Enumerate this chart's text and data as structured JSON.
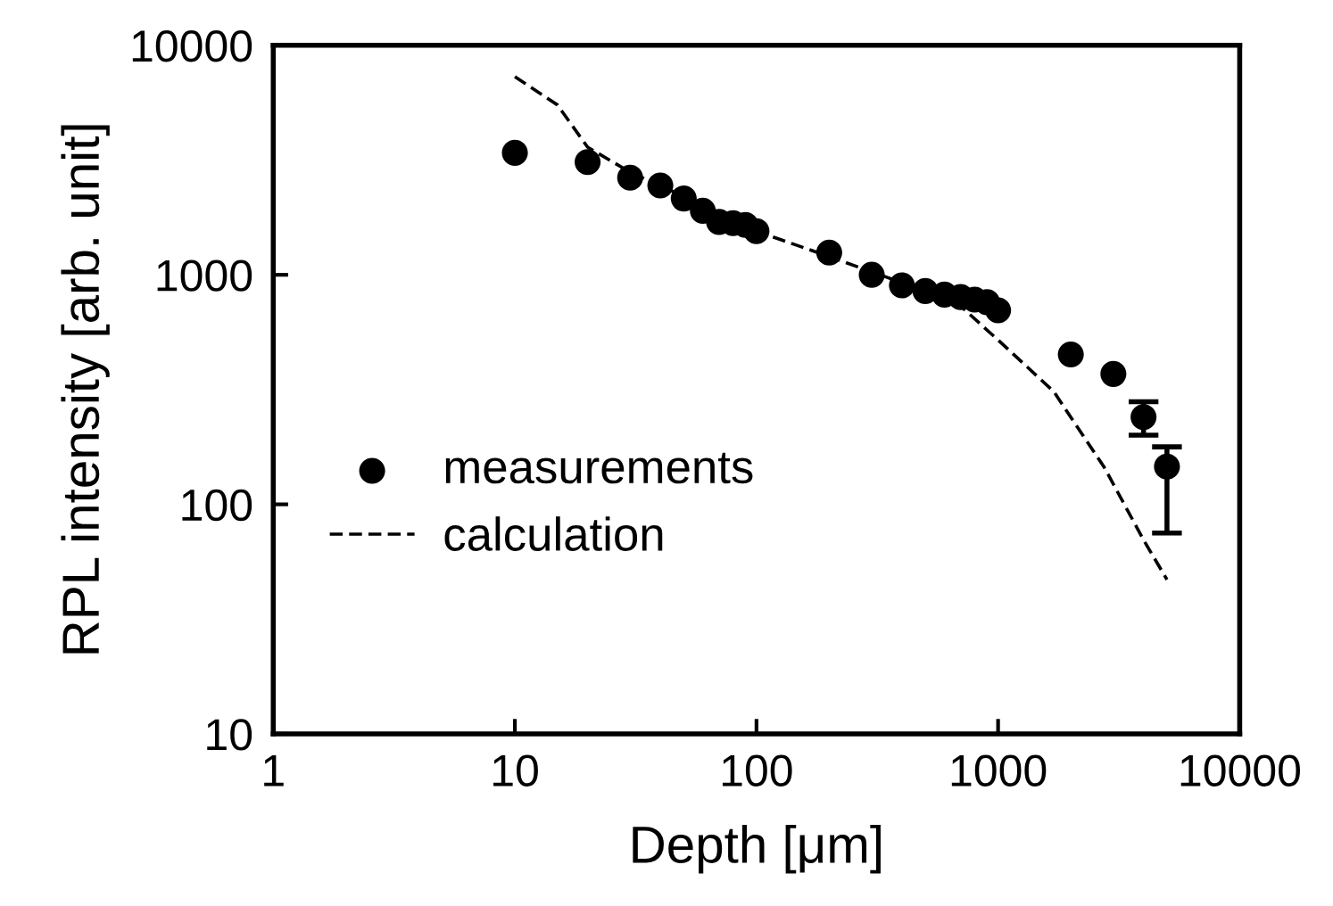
{
  "chart_data": {
    "type": "scatter",
    "xlabel": "Depth [μm]",
    "ylabel": "RPL intensity [arb. unit]",
    "log": "xy",
    "xlim": [
      1,
      10000
    ],
    "xticks": [
      1,
      10,
      100,
      1000,
      10000
    ],
    "ylim": [
      10,
      10000
    ],
    "yticks": [
      10,
      100,
      1000,
      10000
    ],
    "grid": false,
    "legend": "bottom left",
    "series": [
      {
        "name": "measurements",
        "marker": "circle",
        "color": "#000000",
        "x": [
          10,
          20,
          30,
          40,
          50,
          60,
          70,
          80,
          90,
          100,
          200,
          300,
          400,
          500,
          600,
          700,
          800,
          900,
          1000,
          2000,
          3000,
          4000,
          5000
        ],
        "values": [
          3400,
          3100,
          2650,
          2450,
          2150,
          1900,
          1700,
          1680,
          1650,
          1550,
          1250,
          1000,
          900,
          850,
          820,
          800,
          780,
          760,
          700,
          450,
          370,
          240,
          146
        ],
        "errors": [
          null,
          null,
          null,
          null,
          null,
          null,
          null,
          null,
          null,
          null,
          null,
          null,
          null,
          null,
          null,
          null,
          null,
          null,
          null,
          null,
          null,
          [
            200,
            280
          ],
          [
            75,
            178
          ]
        ]
      },
      {
        "name": "calculation",
        "type": "line",
        "line_style": "dashed",
        "marker": "none",
        "color": "#000000",
        "x": [
          10,
          15,
          20,
          30,
          50,
          100,
          200,
          500,
          700,
          1000,
          1700,
          2750,
          4000,
          5000
        ],
        "values": [
          7300,
          5500,
          3600,
          2800,
          2200,
          1550,
          1200,
          850,
          730,
          520,
          310,
          145,
          70,
          47
        ]
      }
    ]
  }
}
